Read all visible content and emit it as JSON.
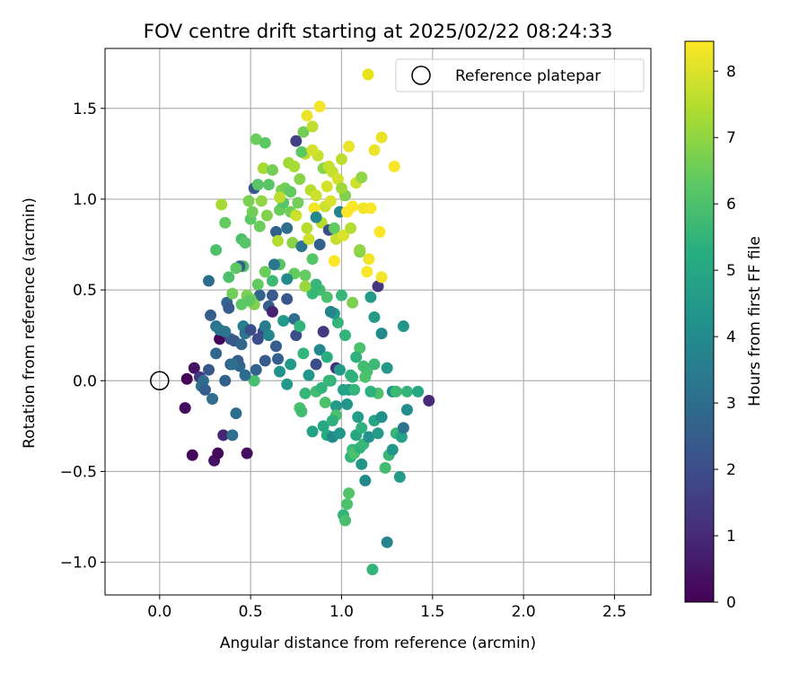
{
  "chart_data": {
    "type": "scatter",
    "title": "FOV centre drift starting at 2025/02/22 08:24:33",
    "xlabel": "Angular distance from reference (arcmin)",
    "ylabel": "Rotation from reference (arcmin)",
    "xlim": [
      -0.3,
      2.7
    ],
    "ylim": [
      -1.18,
      1.83
    ],
    "xticks": [
      0.0,
      0.5,
      1.0,
      1.5,
      2.0,
      2.5
    ],
    "xtick_labels": [
      "0.0",
      "0.5",
      "1.0",
      "1.5",
      "2.0",
      "2.5"
    ],
    "yticks": [
      -1.0,
      -0.5,
      0.0,
      0.5,
      1.0,
      1.5
    ],
    "ytick_labels": [
      "−1.0",
      "−0.5",
      "0.0",
      "0.5",
      "1.0",
      "1.5"
    ],
    "grid": true,
    "legend": {
      "placement": "top-right",
      "entries": [
        {
          "label": "",
          "marker": "filled-circle",
          "color": "#e5e419"
        },
        {
          "label": "Reference platepar",
          "marker": "open-circle",
          "color": "#000000"
        }
      ]
    },
    "reference_point": {
      "x": 0.0,
      "y": 0.0,
      "name": "Reference platepar"
    },
    "colorbar": {
      "label": "Hours from first FF file",
      "colormap": "viridis",
      "range": [
        0,
        8.45
      ],
      "ticks": [
        0,
        1,
        2,
        3,
        4,
        5,
        6,
        7,
        8
      ],
      "tick_labels": [
        "0",
        "1",
        "2",
        "3",
        "4",
        "5",
        "6",
        "7",
        "8"
      ]
    },
    "points": [
      [
        0.14,
        -0.15,
        0.3
      ],
      [
        0.15,
        0.01,
        0.1
      ],
      [
        0.18,
        -0.41,
        0.2
      ],
      [
        0.19,
        0.07,
        0.4
      ],
      [
        0.22,
        0.02,
        1.3
      ],
      [
        0.23,
        -0.03,
        3.3
      ],
      [
        0.24,
        0.0,
        3.0
      ],
      [
        0.25,
        -0.05,
        2.5
      ],
      [
        0.27,
        0.06,
        2.3
      ],
      [
        0.28,
        0.36,
        2.5
      ],
      [
        0.29,
        -0.1,
        3.0
      ],
      [
        0.3,
        -0.44,
        0.4
      ],
      [
        0.31,
        0.3,
        3.2
      ],
      [
        0.32,
        -0.4,
        0.2
      ],
      [
        0.33,
        0.23,
        0.1
      ],
      [
        0.35,
        -0.3,
        0.9
      ],
      [
        0.36,
        0.0,
        2.6
      ],
      [
        0.37,
        0.43,
        2.8
      ],
      [
        0.38,
        0.4,
        2.4
      ],
      [
        0.39,
        0.09,
        2.2
      ],
      [
        0.4,
        -0.3,
        3.1
      ],
      [
        0.41,
        0.22,
        2.3
      ],
      [
        0.42,
        -0.18,
        3.0
      ],
      [
        0.44,
        0.08,
        2.8
      ],
      [
        0.45,
        0.2,
        2.8
      ],
      [
        0.46,
        0.3,
        3.6
      ],
      [
        0.47,
        0.26,
        3.3
      ],
      [
        0.48,
        -0.4,
        0.3
      ],
      [
        0.5,
        0.28,
        2.0
      ],
      [
        0.52,
        0.0,
        5.9
      ],
      [
        0.54,
        0.23,
        2.0
      ],
      [
        0.55,
        0.47,
        2.7
      ],
      [
        0.57,
        0.27,
        2.0
      ],
      [
        0.58,
        0.3,
        3.5
      ],
      [
        0.6,
        0.41,
        2.6
      ],
      [
        0.62,
        0.38,
        0.8
      ],
      [
        0.64,
        0.19,
        2.5
      ],
      [
        0.65,
        0.12,
        2.6
      ],
      [
        0.66,
        0.05,
        4.3
      ],
      [
        0.68,
        0.33,
        4.5
      ],
      [
        0.7,
        -0.02,
        4.5
      ],
      [
        0.72,
        0.09,
        4.5
      ],
      [
        0.74,
        0.34,
        3.0
      ],
      [
        0.75,
        0.25,
        2.0
      ],
      [
        0.77,
        0.3,
        5.5
      ],
      [
        0.79,
        0.15,
        5.5
      ],
      [
        0.8,
        -0.07,
        5.6
      ],
      [
        0.82,
        0.03,
        4.4
      ],
      [
        0.84,
        -0.28,
        4.8
      ],
      [
        0.86,
        0.09,
        2.0
      ],
      [
        0.88,
        0.17,
        3.9
      ],
      [
        0.9,
        -0.25,
        5.0
      ],
      [
        0.92,
        -0.3,
        5.2
      ],
      [
        0.94,
        0.0,
        5.3
      ],
      [
        0.95,
        -0.31,
        4.0
      ],
      [
        0.97,
        0.07,
        1.2
      ],
      [
        0.99,
        -0.29,
        4.4
      ],
      [
        1.01,
        -0.74,
        5.5
      ],
      [
        1.02,
        -0.77,
        5.9
      ],
      [
        1.03,
        -0.68,
        6.0
      ],
      [
        1.04,
        -0.62,
        6.1
      ],
      [
        1.05,
        -0.42,
        5.5
      ],
      [
        1.06,
        -0.38,
        5.7
      ],
      [
        1.07,
        -0.4,
        6.0
      ],
      [
        1.08,
        -0.3,
        5.0
      ],
      [
        1.1,
        -0.37,
        5.4
      ],
      [
        1.11,
        -0.46,
        4.4
      ],
      [
        1.12,
        -0.35,
        5.6
      ],
      [
        1.13,
        -0.55,
        4.0
      ],
      [
        1.15,
        -0.31,
        4.3
      ],
      [
        1.17,
        -1.04,
        5.5
      ],
      [
        1.18,
        -0.22,
        5.0
      ],
      [
        1.2,
        -0.29,
        4.6
      ],
      [
        1.22,
        -0.2,
        4.2
      ],
      [
        1.24,
        -0.48,
        5.8
      ],
      [
        1.25,
        -0.89,
        3.8
      ],
      [
        1.26,
        -0.41,
        5.6
      ],
      [
        1.28,
        -0.38,
        4.4
      ],
      [
        1.3,
        -0.29,
        5.6
      ],
      [
        1.32,
        -0.53,
        4.6
      ],
      [
        1.33,
        -0.31,
        4.8
      ],
      [
        1.34,
        -0.26,
        3.2
      ],
      [
        1.36,
        -0.16,
        4.1
      ],
      [
        1.48,
        -0.11,
        1.0
      ],
      [
        1.34,
        0.3,
        4.4
      ],
      [
        1.28,
        -0.06,
        4.2
      ],
      [
        1.25,
        0.07,
        4.5
      ],
      [
        1.22,
        0.26,
        4.0
      ],
      [
        1.2,
        -0.07,
        6.0
      ],
      [
        1.18,
        0.35,
        4.6
      ],
      [
        1.16,
        0.46,
        4.6
      ],
      [
        1.14,
        0.05,
        5.9
      ],
      [
        1.12,
        0.08,
        5.8
      ],
      [
        1.1,
        0.18,
        6.0
      ],
      [
        1.08,
        0.13,
        5.4
      ],
      [
        1.06,
        0.02,
        5.5
      ],
      [
        1.04,
        -0.05,
        4.6
      ],
      [
        1.02,
        0.25,
        5.5
      ],
      [
        1.0,
        0.47,
        5.6
      ],
      [
        0.98,
        0.32,
        5.5
      ],
      [
        0.96,
        0.37,
        4.6
      ],
      [
        0.94,
        0.38,
        3.8
      ],
      [
        0.92,
        0.46,
        6.0
      ],
      [
        0.9,
        0.27,
        1.4
      ],
      [
        0.88,
        0.5,
        5.8
      ],
      [
        0.86,
        0.53,
        5.6
      ],
      [
        0.84,
        0.48,
        5.6
      ],
      [
        0.8,
        0.58,
        6.4
      ],
      [
        0.74,
        0.59,
        6.4
      ],
      [
        0.7,
        0.56,
        4.0
      ],
      [
        0.66,
        0.64,
        6.2
      ],
      [
        0.62,
        0.55,
        5.7
      ],
      [
        0.58,
        0.6,
        6.5
      ],
      [
        0.54,
        0.53,
        6.4
      ],
      [
        0.52,
        0.42,
        6.8
      ],
      [
        0.5,
        0.45,
        6.6
      ],
      [
        0.48,
        0.47,
        6.7
      ],
      [
        0.46,
        0.63,
        6.0
      ],
      [
        0.44,
        0.63,
        2.6
      ],
      [
        0.42,
        0.62,
        6.3
      ],
      [
        0.4,
        0.48,
        6.6
      ],
      [
        0.38,
        0.57,
        6.0
      ],
      [
        0.36,
        0.87,
        6.4
      ],
      [
        0.34,
        0.97,
        7.3
      ],
      [
        0.31,
        0.72,
        6.0
      ],
      [
        0.45,
        0.78,
        6.0
      ],
      [
        0.47,
        0.76,
        6.2
      ],
      [
        0.49,
        0.99,
        6.7
      ],
      [
        0.5,
        0.89,
        6.3
      ],
      [
        0.51,
        0.93,
        6.6
      ],
      [
        0.52,
        1.06,
        2.3
      ],
      [
        0.53,
        1.33,
        6.5
      ],
      [
        0.54,
        1.08,
        6.2
      ],
      [
        0.55,
        0.85,
        6.5
      ],
      [
        0.56,
        0.99,
        7.0
      ],
      [
        0.57,
        1.17,
        7.3
      ],
      [
        0.58,
        1.31,
        6.3
      ],
      [
        0.59,
        0.91,
        6.8
      ],
      [
        0.6,
        1.08,
        6.2
      ],
      [
        0.62,
        1.16,
        6.6
      ],
      [
        0.63,
        0.64,
        3.3
      ],
      [
        0.64,
        0.82,
        2.6
      ],
      [
        0.65,
        0.77,
        7.5
      ],
      [
        0.66,
        0.94,
        6.5
      ],
      [
        0.67,
        1.05,
        6.8
      ],
      [
        0.68,
        0.98,
        6.2
      ],
      [
        0.69,
        1.06,
        6.6
      ],
      [
        0.7,
        0.84,
        3.0
      ],
      [
        0.71,
        1.2,
        7.2
      ],
      [
        0.72,
        0.93,
        6.6
      ],
      [
        0.73,
        0.76,
        6.9
      ],
      [
        0.74,
        1.18,
        7.3
      ],
      [
        0.75,
        0.91,
        7.8
      ],
      [
        0.76,
        0.98,
        6.6
      ],
      [
        0.77,
        1.11,
        6.9
      ],
      [
        0.78,
        0.74,
        3.3
      ],
      [
        0.79,
        1.37,
        6.6
      ],
      [
        0.8,
        1.25,
        7.6
      ],
      [
        0.81,
        0.84,
        7.5
      ],
      [
        0.82,
        0.78,
        7.8
      ],
      [
        0.83,
        1.05,
        7.5
      ],
      [
        0.84,
        0.67,
        6.2
      ],
      [
        0.85,
        0.95,
        8.3
      ],
      [
        0.86,
        1.02,
        7.8
      ],
      [
        0.87,
        1.24,
        7.7
      ],
      [
        0.88,
        1.51,
        8.3
      ],
      [
        0.89,
        0.87,
        7.5
      ],
      [
        0.9,
        1.17,
        6.9
      ],
      [
        0.91,
        0.96,
        7.8
      ],
      [
        0.92,
        1.07,
        7.9
      ],
      [
        0.93,
        0.83,
        2.0
      ],
      [
        0.94,
        0.99,
        8.0
      ],
      [
        0.95,
        1.15,
        7.7
      ],
      [
        0.96,
        0.66,
        8.4
      ],
      [
        0.97,
        0.78,
        7.7
      ],
      [
        0.98,
        1.11,
        7.9
      ],
      [
        0.99,
        0.93,
        3.8
      ],
      [
        1.0,
        1.22,
        7.6
      ],
      [
        1.01,
        0.8,
        8.0
      ],
      [
        1.02,
        1.02,
        6.8
      ],
      [
        1.03,
        0.93,
        8.4
      ],
      [
        1.04,
        1.29,
        8.2
      ],
      [
        1.06,
        0.96,
        8.4
      ],
      [
        1.08,
        1.09,
        7.8
      ],
      [
        1.1,
        0.71,
        6.8
      ],
      [
        1.11,
        1.12,
        7.0
      ],
      [
        1.12,
        0.95,
        8.3
      ],
      [
        1.14,
        0.6,
        8.4
      ],
      [
        1.15,
        0.67,
        8.3
      ],
      [
        1.16,
        0.95,
        8.4
      ],
      [
        1.18,
        1.27,
        8.2
      ],
      [
        1.2,
        0.52,
        1.3
      ],
      [
        1.21,
        0.82,
        8.4
      ],
      [
        1.22,
        1.34,
        8.2
      ],
      [
        1.22,
        0.57,
        8.3
      ],
      [
        1.29,
        1.18,
        8.4
      ],
      [
        0.81,
        1.46,
        8.2
      ],
      [
        0.84,
        1.4,
        7.6
      ],
      [
        0.78,
        1.26,
        6.3
      ],
      [
        0.75,
        1.32,
        1.6
      ],
      [
        0.27,
        0.55,
        3.0
      ],
      [
        0.45,
        0.42,
        6.3
      ],
      [
        0.49,
        0.44,
        6.3
      ],
      [
        0.39,
        0.23,
        2.4
      ],
      [
        0.58,
        0.11,
        2.4
      ],
      [
        0.7,
        0.45,
        2.3
      ],
      [
        0.31,
        0.15,
        2.8
      ],
      [
        0.33,
        0.28,
        3.4
      ],
      [
        0.43,
        0.11,
        2.5
      ],
      [
        0.6,
        0.25,
        3.8
      ],
      [
        0.93,
        0.0,
        5.6
      ],
      [
        0.97,
        -0.14,
        4.5
      ],
      [
        0.86,
        -0.06,
        5.8
      ],
      [
        1.01,
        -0.05,
        4.8
      ],
      [
        1.03,
        -0.13,
        4.4
      ],
      [
        1.05,
        0.03,
        5.4
      ],
      [
        1.07,
        -0.05,
        5.5
      ],
      [
        0.77,
        -0.15,
        6.0
      ],
      [
        0.78,
        -0.17,
        5.8
      ],
      [
        1.13,
        0.02,
        6.0
      ],
      [
        1.16,
        -0.06,
        5.4
      ],
      [
        1.18,
        0.09,
        5.7
      ],
      [
        1.11,
        -0.26,
        5.4
      ],
      [
        1.09,
        -0.2,
        4.7
      ],
      [
        0.97,
        -0.19,
        5.9
      ],
      [
        0.95,
        -0.22,
        5.4
      ],
      [
        0.91,
        -0.12,
        6.0
      ],
      [
        0.89,
        -0.04,
        5.5
      ],
      [
        0.92,
        0.13,
        5.3
      ],
      [
        0.99,
        0.06,
        4.6
      ],
      [
        1.3,
        -0.06,
        5.7
      ],
      [
        1.36,
        -0.06,
        5.5
      ],
      [
        1.42,
        -0.06,
        5.0
      ],
      [
        1.06,
        0.43,
        6.7
      ],
      [
        1.1,
        0.72,
        7.0
      ],
      [
        0.96,
        0.84,
        6.4
      ],
      [
        0.88,
        0.75,
        2.6
      ],
      [
        0.86,
        0.9,
        3.9
      ],
      [
        0.93,
        1.18,
        7.7
      ],
      [
        1.0,
        1.06,
        7.2
      ],
      [
        1.05,
        0.84,
        7.5
      ],
      [
        0.66,
        1.01,
        7.6
      ],
      [
        0.72,
        1.04,
        6.4
      ],
      [
        0.84,
        1.27,
        7.9
      ],
      [
        0.62,
        0.47,
        2.4
      ],
      [
        0.8,
        0.52,
        7.1
      ],
      [
        0.36,
        0.27,
        3.3
      ],
      [
        0.53,
        0.06,
        2.7
      ],
      [
        0.47,
        0.03,
        3.0
      ],
      [
        0.4,
        0.09,
        3.1
      ]
    ]
  }
}
